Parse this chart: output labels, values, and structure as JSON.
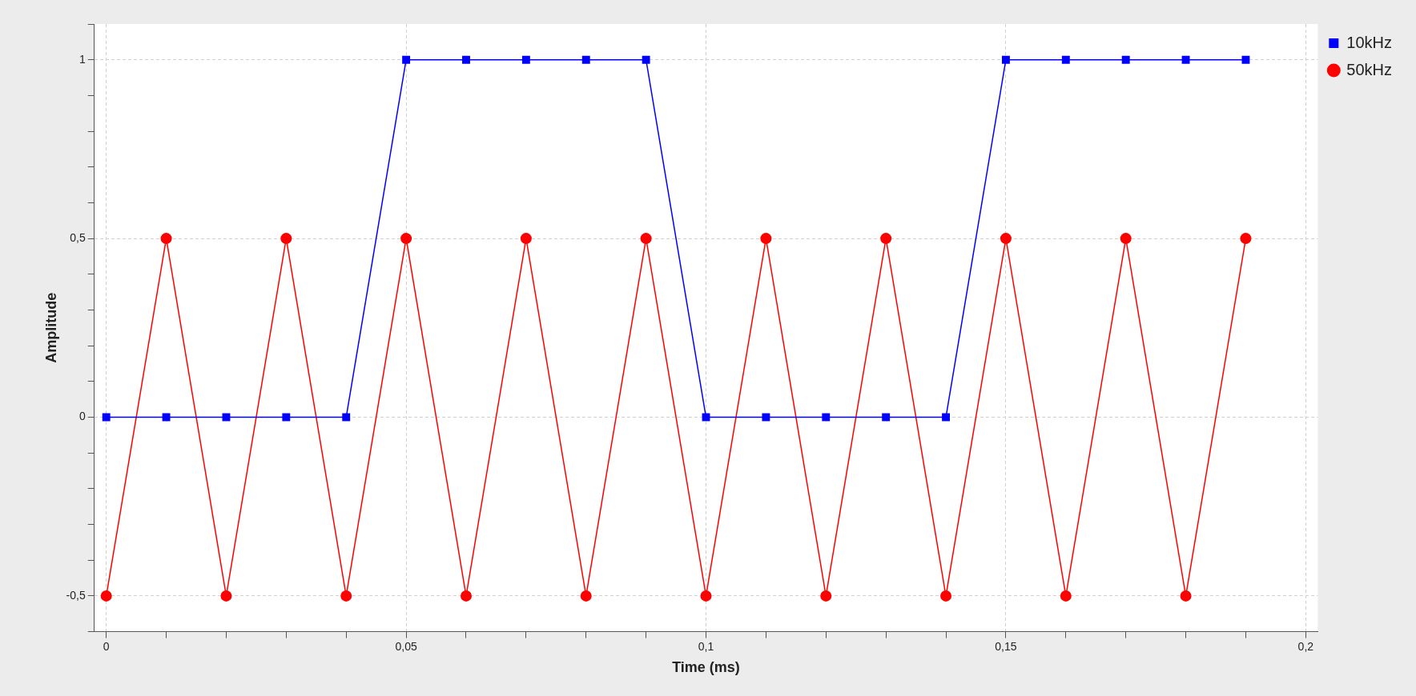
{
  "chart_data": {
    "type": "line",
    "xlabel": "Time (ms)",
    "ylabel": "Amplitude",
    "x": [
      0,
      0.01,
      0.02,
      0.03,
      0.04,
      0.05,
      0.06,
      0.07,
      0.08,
      0.09,
      0.1,
      0.11,
      0.12,
      0.13,
      0.14,
      0.15,
      0.16,
      0.17,
      0.18,
      0.19
    ],
    "series": [
      {
        "name": "10kHz",
        "color": "#0000ff",
        "marker": "square",
        "values": [
          0,
          0,
          0,
          0,
          0,
          1,
          1,
          1,
          1,
          1,
          0,
          0,
          0,
          0,
          0,
          1,
          1,
          1,
          1,
          1
        ]
      },
      {
        "name": "50kHz",
        "color": "#ff0000",
        "marker": "circle",
        "values": [
          -0.5,
          0.5,
          -0.5,
          0.5,
          -0.5,
          0.5,
          -0.5,
          0.5,
          -0.5,
          0.5,
          -0.5,
          0.5,
          -0.5,
          0.5,
          -0.5,
          0.5,
          -0.5,
          0.5,
          -0.5,
          0.5
        ]
      }
    ],
    "xlim": [
      -0.002,
      0.202
    ],
    "xticks": [
      {
        "value": 0,
        "label": "0"
      },
      {
        "value": 0.01,
        "label": null
      },
      {
        "value": 0.02,
        "label": null
      },
      {
        "value": 0.03,
        "label": null
      },
      {
        "value": 0.04,
        "label": null
      },
      {
        "value": 0.05,
        "label": "0,05"
      },
      {
        "value": 0.06,
        "label": null
      },
      {
        "value": 0.07,
        "label": null
      },
      {
        "value": 0.08,
        "label": null
      },
      {
        "value": 0.09,
        "label": null
      },
      {
        "value": 0.1,
        "label": "0,1"
      },
      {
        "value": 0.11,
        "label": null
      },
      {
        "value": 0.12,
        "label": null
      },
      {
        "value": 0.13,
        "label": null
      },
      {
        "value": 0.14,
        "label": null
      },
      {
        "value": 0.15,
        "label": "0,15"
      },
      {
        "value": 0.16,
        "label": null
      },
      {
        "value": 0.17,
        "label": null
      },
      {
        "value": 0.18,
        "label": null
      },
      {
        "value": 0.19,
        "label": null
      },
      {
        "value": 0.2,
        "label": "0,2"
      }
    ],
    "ylim": [
      -0.6,
      1.1
    ],
    "yticks": [
      {
        "value": -0.6,
        "label": null
      },
      {
        "value": -0.5,
        "label": "-0,5"
      },
      {
        "value": -0.4,
        "label": null
      },
      {
        "value": -0.3,
        "label": null
      },
      {
        "value": -0.2,
        "label": null
      },
      {
        "value": -0.1,
        "label": null
      },
      {
        "value": 0,
        "label": "0"
      },
      {
        "value": 0.1,
        "label": null
      },
      {
        "value": 0.2,
        "label": null
      },
      {
        "value": 0.3,
        "label": null
      },
      {
        "value": 0.4,
        "label": null
      },
      {
        "value": 0.5,
        "label": "0,5"
      },
      {
        "value": 0.6,
        "label": null
      },
      {
        "value": 0.7,
        "label": null
      },
      {
        "value": 0.8,
        "label": null
      },
      {
        "value": 0.9,
        "label": null
      },
      {
        "value": 1,
        "label": "1"
      },
      {
        "value": 1.1,
        "label": null
      }
    ],
    "grid": true,
    "legend": "top right",
    "line_style": "solid"
  }
}
